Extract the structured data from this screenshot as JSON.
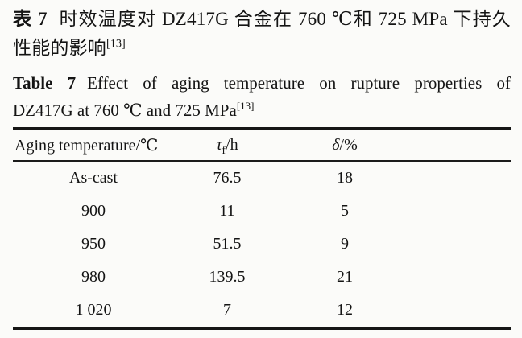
{
  "caption_zh": {
    "label": "表 7",
    "line1": "时效温度对 DZ417G 合金在 760 ℃和 725 MPa 下持久",
    "line2": "性能的影响",
    "ref": "[13]"
  },
  "caption_en": {
    "label": "Table 7",
    "line1": "Effect of aging temperature on rupture properties of",
    "line2": "DZ417G at 760 ℃ and 725 MPa",
    "ref": "[13]"
  },
  "table": {
    "header": {
      "col1": "Aging temperature/℃",
      "col2_sym": "τ",
      "col2_sub": "f",
      "col2_unit": "/h",
      "col3_sym": "δ",
      "col3_unit": "/%"
    },
    "rows": [
      {
        "c1": "As-cast",
        "c2": "76.5",
        "c3": "18"
      },
      {
        "c1": "900",
        "c2": "11",
        "c3": "5"
      },
      {
        "c1": "950",
        "c2": "51.5",
        "c3": "9"
      },
      {
        "c1": "980",
        "c2": "139.5",
        "c3": "21"
      },
      {
        "c1": "1 020",
        "c2": "7",
        "c3": "12"
      }
    ]
  },
  "chart_data": {
    "type": "table",
    "title_zh": "表 7 时效温度对 DZ417G 合金在 760 ℃和 725 MPa 下持久性能的影响[13]",
    "title_en": "Table 7 Effect of aging temperature on rupture properties of DZ417G at 760 ℃ and 725 MPa[13]",
    "columns": [
      "Aging temperature/℃",
      "τf/h",
      "δ/%"
    ],
    "rows": [
      [
        "As-cast",
        76.5,
        18
      ],
      [
        "900",
        11,
        5
      ],
      [
        "950",
        51.5,
        9
      ],
      [
        "980",
        139.5,
        21
      ],
      [
        "1 020",
        7,
        12
      ]
    ]
  },
  "colors": {
    "background": "#fbfbf9",
    "text": "#141414",
    "rule": "#161616"
  }
}
